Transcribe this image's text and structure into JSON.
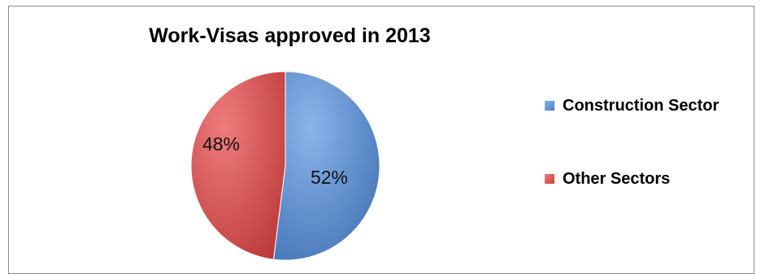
{
  "chart_data": {
    "type": "pie",
    "title": "Work-Visas approved in 2013",
    "categories": [
      "Construction Sector",
      "Other Sectors"
    ],
    "values": [
      52,
      48
    ],
    "data_labels": [
      "52%",
      "48%"
    ],
    "colors": [
      "#4a7ec2",
      "#cf4040"
    ],
    "legend_position": "right"
  }
}
